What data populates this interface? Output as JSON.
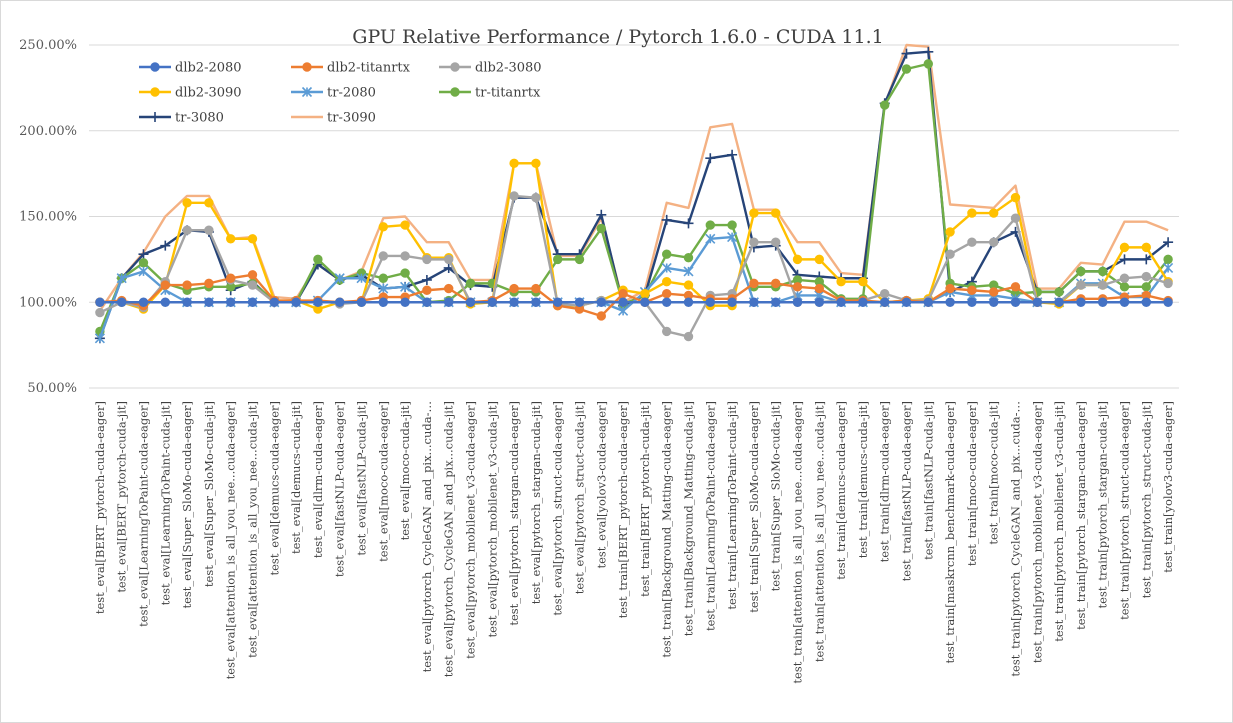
{
  "chart_data": {
    "type": "line",
    "title": "GPU Relative Performance / Pytorch 1.6.0 - CUDA 11.1",
    "ylim": [
      0.5,
      2.5
    ],
    "yticks": [
      "50.00%",
      "100.00%",
      "150.00%",
      "200.00%",
      "250.00%"
    ],
    "ytick_values": [
      0.5,
      1.0,
      1.5,
      2.0,
      2.5
    ],
    "legend_position": "top-left",
    "grid": true,
    "categories": [
      "test_eval[BERT_pytorch-cuda-eager]",
      "test_eval[BERT_pytorch-cuda-jit]",
      "test_eval[LearningToPaint-cuda-eager]",
      "test_eval[LearningToPaint-cuda-jit]",
      "test_eval[Super_SloMo-cuda-eager]",
      "test_eval[Super_SloMo-cuda-jit]",
      "test_eval[attention_is_all_you_nee...cuda-eager]",
      "test_eval[attention_is_all_you_nee...cuda-jit]",
      "test_eval[demucs-cuda-eager]",
      "test_eval[demucs-cuda-jit]",
      "test_eval[dlrm-cuda-eager]",
      "test_eval[fastNLP-cuda-eager]",
      "test_eval[fastNLP-cuda-jit]",
      "test_eval[moco-cuda-eager]",
      "test_eval[moco-cuda-jit]",
      "test_eval[pytorch_CycleGAN_and_pix...cuda-…",
      "test_eval[pytorch_CycleGAN_and_pix...cuda-jit]",
      "test_eval[pytorch_mobilenet_v3-cuda-eager]",
      "test_eval[pytorch_mobilenet_v3-cuda-jit]",
      "test_eval[pytorch_stargan-cuda-eager]",
      "test_eval[pytorch_stargan-cuda-jit]",
      "test_eval[pytorch_struct-cuda-eager]",
      "test_eval[pytorch_struct-cuda-jit]",
      "test_eval[yolov3-cuda-eager]",
      "test_train[BERT_pytorch-cuda-eager]",
      "test_train[BERT_pytorch-cuda-jit]",
      "test_train[Background_Matting-cuda-eager]",
      "test_train[Background_Matting-cuda-jit]",
      "test_train[LearningToPaint-cuda-eager]",
      "test_train[LearningToPaint-cuda-jit]",
      "test_train[Super_SloMo-cuda-eager]",
      "test_train[Super_SloMo-cuda-jit]",
      "test_train[attention_is_all_you_nee...cuda-eager]",
      "test_train[attention_is_all_you_nee...cuda-jit]",
      "test_train[demucs-cuda-eager]",
      "test_train[demucs-cuda-jit]",
      "test_train[dlrm-cuda-eager]",
      "test_train[fastNLP-cuda-eager]",
      "test_train[fastNLP-cuda-jit]",
      "test_train[maskrcnn_benchmark-cuda-eager]",
      "test_train[moco-cuda-eager]",
      "test_train[moco-cuda-jit]",
      "test_train[pytorch_CycleGAN_and_pix...cuda-…",
      "test_train[pytorch_mobilenet_v3-cuda-eager]",
      "test_train[pytorch_mobilenet_v3-cuda-jit]",
      "test_train[pytorch_stargan-cuda-eager]",
      "test_train[pytorch_stargan-cuda-jit]",
      "test_train[pytorch_struct-cuda-eager]",
      "test_train[pytorch_struct-cuda-jit]",
      "test_train[yolov3-cuda-eager]"
    ],
    "series": [
      {
        "name": "dlb2-2080",
        "color": "#4472C4",
        "marker": "circle",
        "values": [
          1.0,
          1.0,
          1.0,
          1.0,
          1.0,
          1.0,
          1.0,
          1.0,
          1.0,
          1.0,
          1.0,
          1.0,
          1.0,
          1.0,
          1.0,
          1.0,
          1.0,
          1.0,
          1.0,
          1.0,
          1.0,
          1.0,
          1.0,
          1.0,
          1.0,
          1.0,
          1.0,
          1.0,
          1.0,
          1.0,
          1.0,
          1.0,
          1.0,
          1.0,
          1.0,
          1.0,
          1.0,
          1.0,
          1.0,
          1.0,
          1.0,
          1.0,
          1.0,
          1.0,
          1.0,
          1.0,
          1.0,
          1.0,
          1.0,
          1.0
        ]
      },
      {
        "name": "dlb2-titanrtx",
        "color": "#ED7D31",
        "marker": "circle",
        "values": [
          1.0,
          1.01,
          0.98,
          1.1,
          1.1,
          1.11,
          1.14,
          1.16,
          1.01,
          1.01,
          1.01,
          1.0,
          1.01,
          1.03,
          1.03,
          1.07,
          1.08,
          1.0,
          1.01,
          1.08,
          1.08,
          0.98,
          0.96,
          0.92,
          1.05,
          1.0,
          1.05,
          1.04,
          1.02,
          1.02,
          1.11,
          1.11,
          1.09,
          1.08,
          1.01,
          1.01,
          1.0,
          1.01,
          1.0,
          1.08,
          1.07,
          1.06,
          1.09,
          1.0,
          1.0,
          1.02,
          1.02,
          1.03,
          1.04,
          1.01
        ]
      },
      {
        "name": "dlb2-3080",
        "color": "#A5A5A5",
        "marker": "circle",
        "values": [
          0.94,
          1.0,
          0.97,
          1.12,
          1.42,
          1.42,
          1.13,
          1.1,
          1.0,
          1.0,
          1.01,
          0.99,
          1.0,
          1.27,
          1.27,
          1.25,
          1.25,
          1.0,
          1.0,
          1.62,
          1.61,
          0.99,
          0.98,
          1.01,
          1.0,
          1.0,
          0.83,
          0.8,
          1.04,
          1.05,
          1.35,
          1.35,
          1.0,
          1.0,
          1.01,
          1.01,
          1.05,
          1.01,
          1.01,
          1.28,
          1.35,
          1.35,
          1.49,
          1.0,
          1.0,
          1.1,
          1.1,
          1.14,
          1.15,
          1.11
        ]
      },
      {
        "name": "dlb2-3090",
        "color": "#FFC000",
        "marker": "circle",
        "values": [
          1.0,
          1.0,
          0.96,
          1.1,
          1.58,
          1.58,
          1.37,
          1.37,
          1.01,
          1.01,
          0.96,
          1.0,
          1.0,
          1.44,
          1.45,
          1.26,
          1.26,
          0.99,
          1.0,
          1.81,
          1.81,
          0.98,
          0.98,
          1.01,
          1.07,
          1.05,
          1.12,
          1.1,
          0.98,
          0.98,
          1.52,
          1.52,
          1.25,
          1.25,
          1.12,
          1.12,
          1.0,
          1.01,
          1.02,
          1.41,
          1.52,
          1.52,
          1.61,
          1.0,
          0.99,
          1.1,
          1.1,
          1.32,
          1.32,
          1.12
        ]
      },
      {
        "name": "tr-2080",
        "color": "#5B9BD5",
        "marker": "star",
        "values": [
          0.79,
          1.14,
          1.18,
          1.07,
          1.0,
          1.0,
          1.0,
          1.0,
          1.0,
          1.0,
          1.01,
          1.14,
          1.14,
          1.08,
          1.09,
          1.0,
          1.0,
          1.0,
          1.0,
          1.0,
          1.0,
          1.0,
          1.0,
          1.0,
          0.95,
          1.06,
          1.2,
          1.18,
          1.37,
          1.38,
          1.0,
          1.0,
          1.04,
          1.04,
          1.0,
          1.0,
          1.0,
          1.0,
          1.0,
          1.06,
          1.04,
          1.04,
          1.02,
          1.0,
          1.0,
          1.11,
          1.11,
          1.03,
          1.03,
          1.2
        ]
      },
      {
        "name": "tr-titanrtx",
        "color": "#70AD47",
        "marker": "circle",
        "values": [
          0.83,
          1.14,
          1.23,
          1.11,
          1.07,
          1.09,
          1.09,
          1.11,
          1.01,
          1.0,
          1.25,
          1.13,
          1.17,
          1.14,
          1.17,
          1.0,
          1.01,
          1.11,
          1.11,
          1.06,
          1.06,
          1.25,
          1.25,
          1.43,
          0.99,
          1.04,
          1.28,
          1.26,
          1.45,
          1.45,
          1.09,
          1.09,
          1.13,
          1.12,
          1.02,
          1.02,
          2.15,
          2.36,
          2.39,
          1.11,
          1.09,
          1.1,
          1.05,
          1.06,
          1.06,
          1.18,
          1.18,
          1.09,
          1.09,
          1.25
        ]
      },
      {
        "name": "tr-3080",
        "color": "#264478",
        "marker": "plus",
        "values": [
          0.79,
          1.14,
          1.28,
          1.33,
          1.42,
          1.41,
          1.07,
          1.12,
          1.0,
          1.0,
          1.22,
          1.13,
          1.16,
          1.08,
          1.09,
          1.13,
          1.2,
          1.1,
          1.09,
          1.61,
          1.61,
          1.28,
          1.28,
          1.51,
          0.98,
          1.04,
          1.48,
          1.46,
          1.84,
          1.86,
          1.32,
          1.33,
          1.16,
          1.15,
          1.14,
          1.14,
          2.16,
          2.45,
          2.46,
          1.06,
          1.12,
          1.35,
          1.41,
          1.06,
          1.06,
          1.18,
          1.18,
          1.25,
          1.25,
          1.35
        ]
      },
      {
        "name": "tr-3090",
        "color": "#F4B183",
        "marker": "none",
        "values": [
          0.95,
          1.14,
          1.29,
          1.5,
          1.62,
          1.62,
          1.37,
          1.38,
          1.03,
          1.02,
          1.22,
          1.13,
          1.18,
          1.49,
          1.5,
          1.35,
          1.35,
          1.13,
          1.13,
          1.81,
          1.81,
          1.27,
          1.27,
          1.49,
          1.0,
          1.07,
          1.58,
          1.55,
          2.02,
          2.04,
          1.54,
          1.54,
          1.35,
          1.35,
          1.17,
          1.16,
          2.15,
          2.5,
          2.49,
          1.57,
          1.56,
          1.55,
          1.68,
          1.08,
          1.08,
          1.23,
          1.22,
          1.47,
          1.47,
          1.42
        ]
      }
    ]
  }
}
